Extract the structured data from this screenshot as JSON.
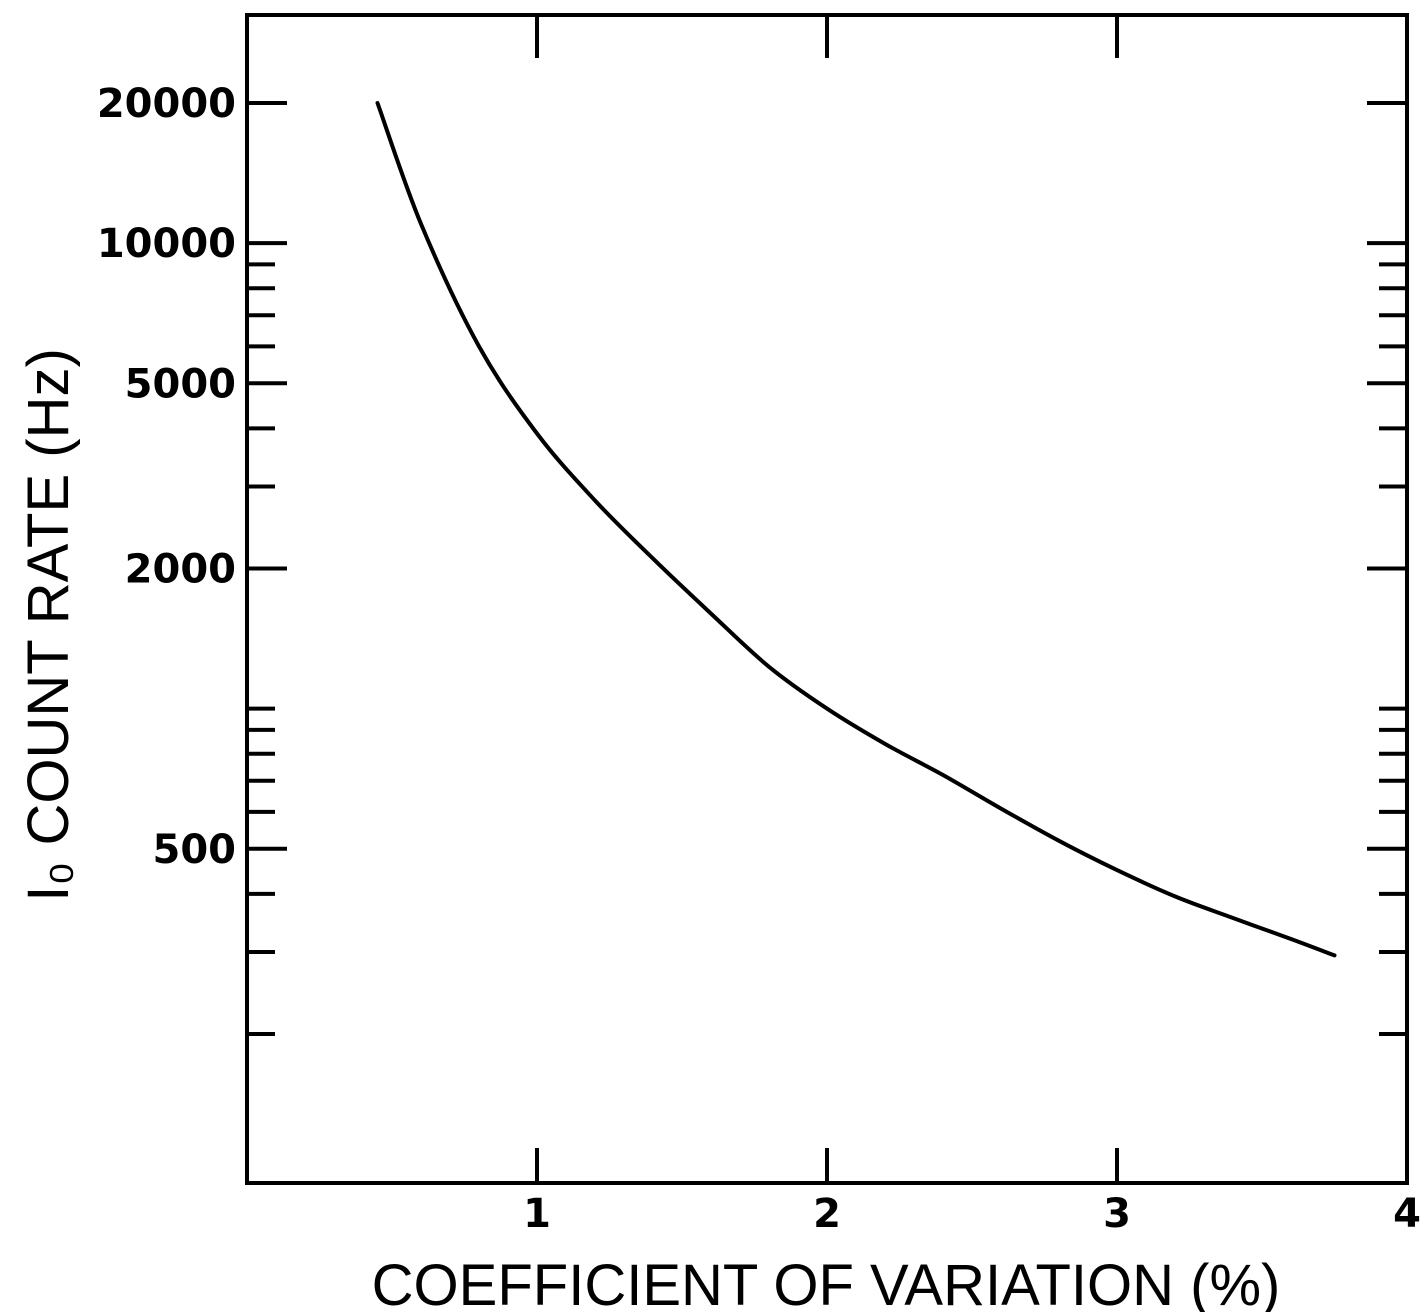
{
  "chart_data": {
    "type": "line",
    "title": "",
    "xlabel": "COEFFICIENT OF VARIATION (%)",
    "ylabel": "I₀ COUNT RATE (Hz)",
    "xlim": [
      0,
      4
    ],
    "ylim": [
      60,
      20000
    ],
    "yscale": "log",
    "grid": false,
    "legend": "none",
    "x_ticks": [
      {
        "value": 1,
        "label": "1"
      },
      {
        "value": 2,
        "label": "2"
      },
      {
        "value": 3,
        "label": "3"
      },
      {
        "value": 4,
        "label": "4"
      }
    ],
    "y_major_ticks": [
      {
        "value": 20000,
        "label": "20000"
      },
      {
        "value": 10000,
        "label": "10000"
      },
      {
        "value": 5000,
        "label": "5000"
      },
      {
        "value": 2000,
        "label": "2000"
      },
      {
        "value": 500,
        "label": "500"
      }
    ],
    "y_minor_ticks": [
      9000,
      8000,
      7000,
      6000,
      4000,
      3000,
      1000,
      900,
      800,
      700,
      600,
      400,
      300,
      200
    ],
    "series": [
      {
        "color": "#000000",
        "x": [
          0.45,
          0.6,
          0.8,
          1.0,
          1.2,
          1.4,
          1.6,
          1.8,
          2.0,
          2.2,
          2.4,
          2.6,
          2.8,
          3.0,
          3.2,
          3.4,
          3.6,
          3.75
        ],
        "y": [
          20000,
          11000,
          6000,
          3900,
          2800,
          2100,
          1600,
          1230,
          1000,
          840,
          720,
          610,
          520,
          450,
          395,
          355,
          320,
          295
        ]
      }
    ]
  }
}
